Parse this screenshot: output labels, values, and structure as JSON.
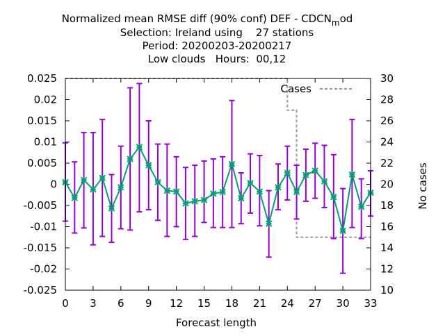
{
  "chart_data": {
    "type": "line",
    "title_lines": [
      "Normalized mean RMSE diff (90% conf) DEF - CDCN",
      "Selection: Ireland using    27 stations",
      "Period: 20200203-20200217",
      "Low clouds   Hours:  00,12"
    ],
    "title_subscript": "m",
    "title_suffix": "od",
    "xlabel": "Forecast length",
    "ylabel": "",
    "y2label": "No cases",
    "xlim": [
      0,
      33
    ],
    "ylim": [
      -0.025,
      0.025
    ],
    "y2lim": [
      10,
      30
    ],
    "x_ticks": [
      "0",
      "3",
      "6",
      "9",
      "12",
      "15",
      "18",
      "21",
      "24",
      "27",
      "30",
      "33"
    ],
    "y_ticks": [
      "-0.025",
      "-0.02",
      "-0.015",
      "-0.01",
      "-0.005",
      "0",
      "0.005",
      "0.01",
      "0.015",
      "0.02",
      "0.025"
    ],
    "y2_ticks": [
      "10",
      "12",
      "14",
      "16",
      "18",
      "20",
      "22",
      "24",
      "26",
      "28",
      "30"
    ],
    "legend": {
      "label": "Cases",
      "position": "top-right"
    },
    "series": [
      {
        "kind": "line-errorbars",
        "line_color": "#009e73",
        "error_color": "#9400d3",
        "points": [
          {
            "x": 0,
            "y": 0.0005,
            "low": -0.0087,
            "high": 0.0098
          },
          {
            "x": 1,
            "y": -0.0032,
            "low": -0.0115,
            "high": 0.0053
          },
          {
            "x": 2,
            "y": 0.001,
            "low": -0.0103,
            "high": 0.0122
          },
          {
            "x": 3,
            "y": -0.0012,
            "low": -0.0143,
            "high": 0.0122
          },
          {
            "x": 4,
            "y": 0.0015,
            "low": -0.0123,
            "high": 0.0153
          },
          {
            "x": 5,
            "y": -0.0057,
            "low": -0.0137,
            "high": 0.0023
          },
          {
            "x": 6,
            "y": -0.0007,
            "low": -0.0105,
            "high": 0.009
          },
          {
            "x": 7,
            "y": 0.006,
            "low": -0.0108,
            "high": 0.0228
          },
          {
            "x": 8,
            "y": 0.0088,
            "low": -0.0065,
            "high": 0.0238
          },
          {
            "x": 9,
            "y": 0.0045,
            "low": -0.006,
            "high": 0.015
          },
          {
            "x": 10,
            "y": 0.0005,
            "low": -0.0085,
            "high": 0.0095
          },
          {
            "x": 11,
            "y": -0.0015,
            "low": -0.0123,
            "high": 0.0095
          },
          {
            "x": 12,
            "y": -0.0017,
            "low": -0.01,
            "high": 0.0065
          },
          {
            "x": 13,
            "y": -0.0045,
            "low": -0.013,
            "high": 0.004
          },
          {
            "x": 14,
            "y": -0.004,
            "low": -0.0123,
            "high": 0.0045
          },
          {
            "x": 15,
            "y": -0.0037,
            "low": -0.009,
            "high": 0.0055
          },
          {
            "x": 16,
            "y": -0.0022,
            "low": -0.0102,
            "high": 0.006
          },
          {
            "x": 17,
            "y": -0.0018,
            "low": -0.0102,
            "high": 0.0065
          },
          {
            "x": 18,
            "y": 0.0048,
            "low": -0.0102,
            "high": 0.0198
          },
          {
            "x": 19,
            "y": -0.0033,
            "low": -0.0093,
            "high": 0.0027
          },
          {
            "x": 20,
            "y": 0.0003,
            "low": -0.0068,
            "high": 0.0072
          },
          {
            "x": 21,
            "y": -0.0017,
            "low": -0.0098,
            "high": 0.0068
          },
          {
            "x": 22,
            "y": -0.0093,
            "low": -0.0172,
            "high": -0.0015
          },
          {
            "x": 23,
            "y": -0.0007,
            "low": -0.006,
            "high": 0.0048
          },
          {
            "x": 24,
            "y": 0.0027,
            "low": -0.0037,
            "high": 0.009
          },
          {
            "x": 25,
            "y": -0.0018,
            "low": -0.0082,
            "high": 0.0045
          },
          {
            "x": 26,
            "y": 0.0022,
            "low": -0.004,
            "high": 0.0083
          },
          {
            "x": 27,
            "y": 0.0032,
            "low": -0.0033,
            "high": 0.0097
          },
          {
            "x": 28,
            "y": 0.0007,
            "low": -0.0055,
            "high": 0.0092
          },
          {
            "x": 29,
            "y": -0.003,
            "low": -0.0128,
            "high": 0.007
          },
          {
            "x": 30,
            "y": -0.011,
            "low": -0.021,
            "high": -0.001
          },
          {
            "x": 31,
            "y": 0.0023,
            "low": -0.0102,
            "high": 0.0153
          },
          {
            "x": 32,
            "y": -0.0053,
            "low": -0.0128,
            "high": 0.0013
          },
          {
            "x": 33,
            "y": -0.002,
            "low": -0.0075,
            "high": 0.0032
          }
        ]
      },
      {
        "name": "Cases",
        "kind": "step",
        "axis": "y2",
        "color": "#999999",
        "x": [
          0,
          24,
          24,
          25,
          25,
          33
        ],
        "y": [
          30,
          30,
          27,
          27,
          15,
          15
        ]
      }
    ],
    "grid": false
  }
}
